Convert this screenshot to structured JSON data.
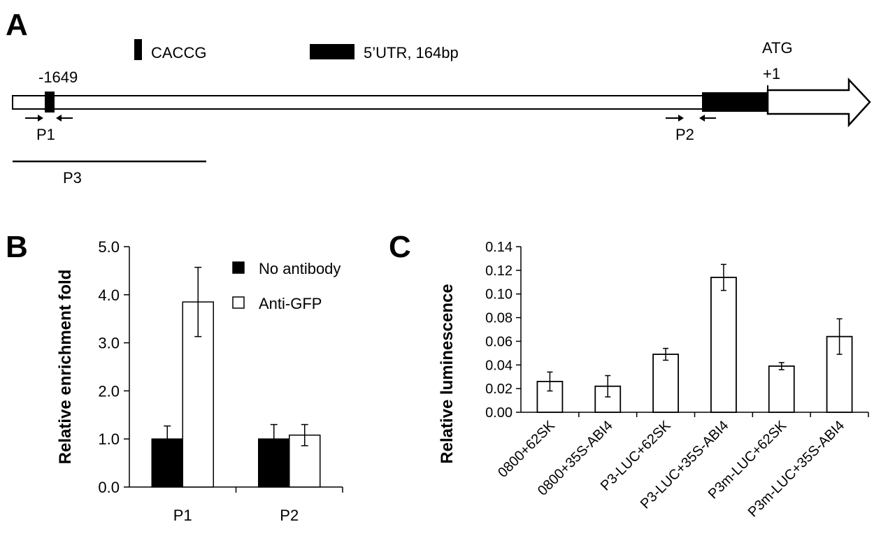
{
  "panels": {
    "a": "A",
    "b": "B",
    "c": "C"
  },
  "diagram": {
    "legend_caccg": "CACCG",
    "legend_utr": "5’UTR, 164bp",
    "pos_label": "-1649",
    "atg_label": "ATG",
    "plus1_label": "+1",
    "p1": "P1",
    "p2": "P2",
    "p3": "P3"
  },
  "chart_data": [
    {
      "type": "bar",
      "panel": "B",
      "categories": [
        "P1",
        "P2"
      ],
      "series": [
        {
          "name": "No antibody",
          "values": [
            1.0,
            1.0
          ],
          "errors": [
            0.27,
            0.3
          ],
          "color": "#000000"
        },
        {
          "name": "Anti-GFP",
          "values": [
            3.85,
            1.08
          ],
          "errors": [
            0.72,
            0.22
          ],
          "color": "#ffffff"
        }
      ],
      "ylabel": "Relative enrichment fold",
      "ylim": [
        0,
        5.0
      ],
      "yticks": [
        "0.0",
        "1.0",
        "2.0",
        "3.0",
        "4.0",
        "5.0"
      ],
      "legend_position": "top-right",
      "grid": false
    },
    {
      "type": "bar",
      "panel": "C",
      "categories": [
        "0800+62SK",
        "0800+35S-ABI4",
        "P3-LUC+62SK",
        "P3-LUC+35S-ABI4",
        "P3m-LUC+62SK",
        "P3m-LUC+35S-ABI4"
      ],
      "series": [
        {
          "values": [
            0.026,
            0.022,
            0.049,
            0.114,
            0.039,
            0.064
          ],
          "errors": [
            0.008,
            0.009,
            0.005,
            0.011,
            0.003,
            0.015
          ],
          "color": "#ffffff"
        }
      ],
      "ylabel": "Relative luminescence",
      "ylim": [
        0,
        0.14
      ],
      "yticks": [
        "0.00",
        "0.02",
        "0.04",
        "0.06",
        "0.08",
        "0.10",
        "0.12",
        "0.14"
      ],
      "grid": false
    }
  ]
}
